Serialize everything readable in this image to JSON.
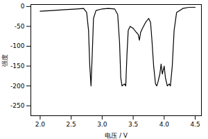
{
  "chart_data": {
    "type": "line",
    "x_label": "电压 / V",
    "y_label": "强度",
    "x": [
      2.0,
      2.2,
      2.4,
      2.6,
      2.7,
      2.75,
      2.78,
      2.8,
      2.82,
      2.84,
      2.86,
      2.9,
      3.0,
      3.1,
      3.2,
      3.25,
      3.28,
      3.3,
      3.32,
      3.36,
      3.38,
      3.4,
      3.42,
      3.45,
      3.5,
      3.55,
      3.58,
      3.6,
      3.62,
      3.65,
      3.7,
      3.75,
      3.78,
      3.8,
      3.83,
      3.86,
      3.88,
      3.9,
      3.93,
      3.95,
      3.97,
      4.0,
      4.02,
      4.05,
      4.08,
      4.1,
      4.13,
      4.16,
      4.2,
      4.3,
      4.4,
      4.5
    ],
    "values": [
      -12,
      -10,
      -8,
      -6,
      -5,
      -15,
      -60,
      -150,
      -200,
      -120,
      -30,
      -10,
      -6,
      -5,
      -6,
      -20,
      -90,
      -180,
      -200,
      -195,
      -200,
      -120,
      -60,
      -50,
      -55,
      -65,
      -70,
      -85,
      -65,
      -55,
      -40,
      -30,
      -40,
      -80,
      -150,
      -195,
      -200,
      -190,
      -170,
      -145,
      -170,
      -150,
      -180,
      -200,
      -195,
      -200,
      -150,
      -60,
      -15,
      -5,
      -2,
      -2
    ],
    "color": "#000000",
    "xlim": [
      1.85,
      4.6
    ],
    "xticks": [
      {
        "value": 2,
        "label": "2.0"
      },
      2.5,
      {
        "value": 3,
        "label": "3.0"
      },
      3.5,
      {
        "value": 4,
        "label": "4.0"
      },
      4.5
    ],
    "ylim": [
      -275,
      5
    ],
    "yticks": [
      0,
      -50,
      -100,
      -150,
      -200,
      -250
    ],
    "grid": false
  }
}
